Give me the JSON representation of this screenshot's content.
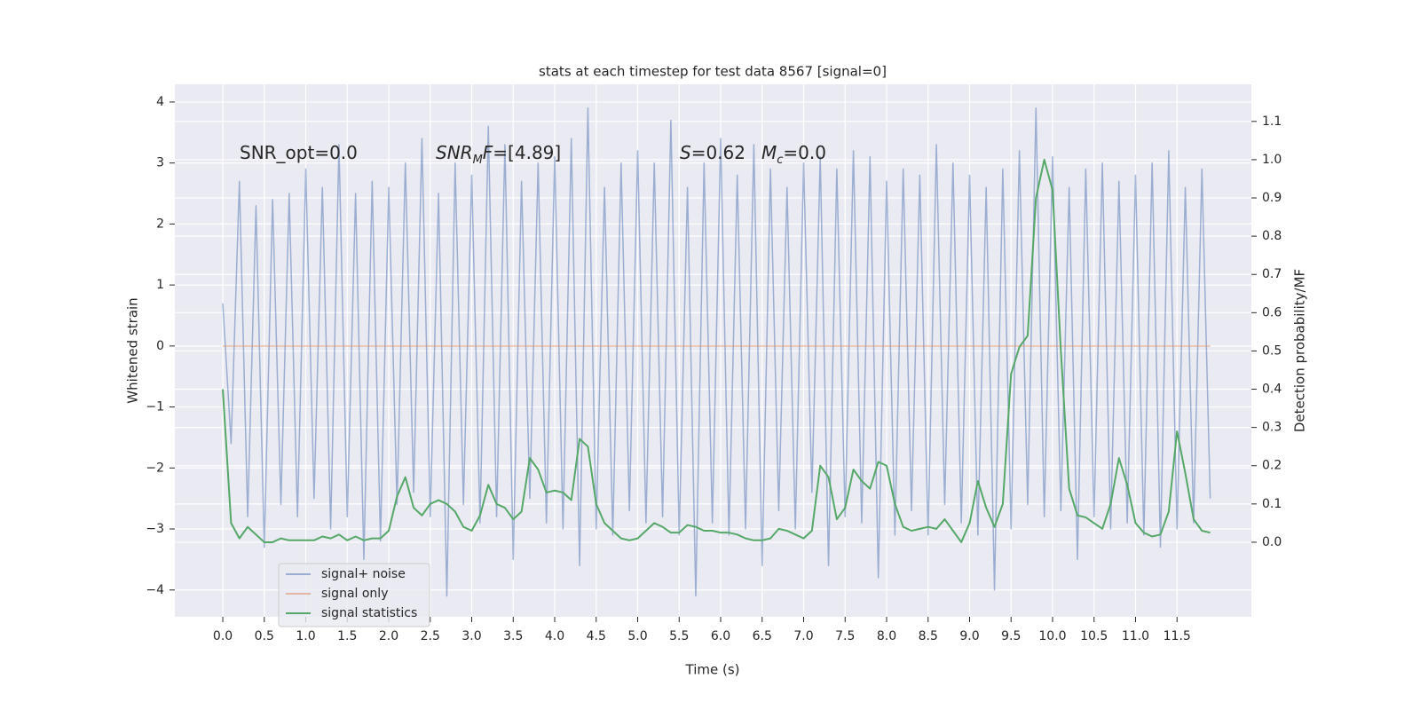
{
  "chart_data": {
    "type": "line",
    "title": "stats at each timestep for test data 8567 [signal=0]",
    "xlabel": "Time (s)",
    "ylabel": "Whitened strain",
    "y2label": "Detection probability/MF",
    "annotations": [
      [
        "SNR_opt=0.0"
      ],
      [
        "SNR",
        "M",
        "F=[4.89]"
      ],
      [
        "S",
        "=0.62",
        "M",
        "c",
        "=0.0"
      ]
    ],
    "x": [
      0,
      0.1,
      0.2,
      0.3,
      0.4,
      0.5,
      0.6,
      0.7,
      0.8,
      0.9,
      1.0,
      1.1,
      1.2,
      1.3,
      1.4,
      1.5,
      1.6,
      1.7,
      1.8,
      1.9,
      2.0,
      2.1,
      2.2,
      2.3,
      2.4,
      2.5,
      2.6,
      2.7,
      2.8,
      2.9,
      3.0,
      3.1,
      3.2,
      3.3,
      3.4,
      3.5,
      3.6,
      3.7,
      3.8,
      3.9,
      4.0,
      4.1,
      4.2,
      4.3,
      4.4,
      4.5,
      4.6,
      4.7,
      4.8,
      4.9,
      5.0,
      5.1,
      5.2,
      5.3,
      5.4,
      5.5,
      5.6,
      5.7,
      5.8,
      5.9,
      6.0,
      6.1,
      6.2,
      6.3,
      6.4,
      6.5,
      6.6,
      6.7,
      6.8,
      6.9,
      7.0,
      7.1,
      7.2,
      7.3,
      7.4,
      7.5,
      7.6,
      7.7,
      7.8,
      7.9,
      8.0,
      8.1,
      8.2,
      8.3,
      8.4,
      8.5,
      8.6,
      8.7,
      8.8,
      8.9,
      9.0,
      9.1,
      9.2,
      9.3,
      9.4,
      9.5,
      9.6,
      9.7,
      9.8,
      9.9,
      10.0,
      10.1,
      10.2,
      10.3,
      10.4,
      10.5,
      10.6,
      10.7,
      10.8,
      10.9,
      11.0,
      11.1,
      11.2,
      11.3,
      11.4,
      11.5,
      11.6,
      11.7,
      11.8,
      11.9
    ],
    "series": [
      {
        "name": "signal+ noise",
        "color": "#4c72b0",
        "opacity": 0.5,
        "values": [
          0.7,
          -1.6,
          2.7,
          -2.8,
          2.3,
          -3.3,
          2.4,
          -2.6,
          2.5,
          -2.8,
          2.9,
          -2.5,
          2.6,
          -3.0,
          3.3,
          -2.8,
          2.5,
          -3.5,
          2.7,
          -3.2,
          2.6,
          -2.6,
          3.0,
          -2.4,
          3.4,
          -2.8,
          2.5,
          -4.1,
          3.0,
          -2.6,
          2.8,
          -2.9,
          3.6,
          -2.8,
          3.3,
          -3.5,
          2.7,
          -2.5,
          3.0,
          -2.9,
          3.1,
          -3.0,
          3.4,
          -3.6,
          3.9,
          -3.0,
          2.6,
          -3.1,
          3.0,
          -2.7,
          3.2,
          -2.9,
          3.0,
          -2.8,
          3.7,
          -3.1,
          2.6,
          -4.1,
          3.0,
          -2.9,
          3.4,
          -3.1,
          2.8,
          -3.0,
          3.3,
          -3.6,
          2.9,
          -2.7,
          2.6,
          -3.0,
          3.0,
          -2.4,
          3.1,
          -3.6,
          2.9,
          -2.8,
          3.2,
          -2.9,
          3.1,
          -3.8,
          2.7,
          -3.1,
          2.9,
          -2.7,
          2.8,
          -3.1,
          3.3,
          -2.6,
          3.0,
          -2.9,
          2.8,
          -3.1,
          2.6,
          -4.0,
          2.9,
          -3.0,
          3.2,
          -2.6,
          3.9,
          -2.8,
          3.1,
          -2.7,
          2.6,
          -3.5,
          2.9,
          -2.8,
          3.0,
          -3.0,
          2.7,
          -2.9,
          2.8,
          -3.1,
          3.0,
          -3.3,
          3.2,
          -3.0,
          2.6,
          -2.9,
          2.9,
          -2.5
        ]
      },
      {
        "name": "signal only",
        "color": "#dd8452",
        "opacity": 0.5,
        "x": [
          0,
          11.9
        ],
        "values": [
          0,
          0
        ]
      },
      {
        "name": "signal statistics",
        "color": "#55a868",
        "axis": "y2",
        "values": [
          0.4,
          0.05,
          0.01,
          0.04,
          0.02,
          0,
          0,
          0.01,
          0.005,
          0.005,
          0.005,
          0.005,
          0.015,
          0.01,
          0.02,
          0.005,
          0.015,
          0.005,
          0.01,
          0.01,
          0.03,
          0.12,
          0.17,
          0.09,
          0.07,
          0.1,
          0.11,
          0.1,
          0.08,
          0.04,
          0.03,
          0.07,
          0.15,
          0.1,
          0.09,
          0.06,
          0.08,
          0.22,
          0.19,
          0.13,
          0.135,
          0.13,
          0.11,
          0.27,
          0.25,
          0.1,
          0.05,
          0.03,
          0.01,
          0.005,
          0.01,
          0.03,
          0.05,
          0.04,
          0.025,
          0.025,
          0.045,
          0.04,
          0.03,
          0.03,
          0.025,
          0.025,
          0.02,
          0.01,
          0.005,
          0.005,
          0.01,
          0.035,
          0.03,
          0.02,
          0.01,
          0.03,
          0.2,
          0.17,
          0.06,
          0.09,
          0.19,
          0.16,
          0.14,
          0.21,
          0.2,
          0.1,
          0.04,
          0.03,
          0.035,
          0.04,
          0.035,
          0.06,
          0.03,
          0,
          0.05,
          0.16,
          0.09,
          0.04,
          0.1,
          0.44,
          0.51,
          0.54,
          0.9,
          1.0,
          0.92,
          0.5,
          0.14,
          0.07,
          0.065,
          0.05,
          0.035,
          0.1,
          0.22,
          0.15,
          0.05,
          0.025,
          0.015,
          0.02,
          0.08,
          0.29,
          0.18,
          0.06,
          0.03,
          0.025
        ]
      }
    ],
    "xlim": [
      -0.578,
      12.396
    ],
    "xticks": [
      {
        "value": 0,
        "label": "0.0"
      },
      0.5,
      {
        "value": 1,
        "label": "1.0"
      },
      1.5,
      {
        "value": 2,
        "label": "2.0"
      },
      2.5,
      {
        "value": 3,
        "label": "3.0"
      },
      3.5,
      {
        "value": 4,
        "label": "4.0"
      },
      4.5,
      {
        "value": 5,
        "label": "5.0"
      },
      5.5,
      {
        "value": 6,
        "label": "6.0"
      },
      6.5,
      {
        "value": 7,
        "label": "7.0"
      },
      7.5,
      {
        "value": 8,
        "label": "8.0"
      },
      8.5,
      {
        "value": 9,
        "label": "9.0"
      },
      9.5,
      {
        "value": 10,
        "label": "10.0"
      },
      10.5,
      {
        "value": 11,
        "label": "11.0"
      },
      11.5
    ],
    "ylim": [
      -4.44,
      4.29
    ],
    "yticks": [
      {
        "value": -4,
        "label": "−4"
      },
      {
        "value": -3,
        "label": "−3"
      },
      {
        "value": -2,
        "label": "−2"
      },
      {
        "value": -1,
        "label": "−1"
      },
      0,
      1,
      2,
      3,
      4
    ],
    "y2lim": [
      -0.195,
      1.197
    ],
    "y2ticks": [
      {
        "value": 0,
        "label": "0.0"
      },
      0.1,
      0.2,
      0.3,
      0.4,
      0.5,
      0.6,
      0.7,
      0.8,
      0.9,
      {
        "value": 1,
        "label": "1.0"
      },
      1.1
    ],
    "grid": true,
    "legend": "lower left"
  }
}
